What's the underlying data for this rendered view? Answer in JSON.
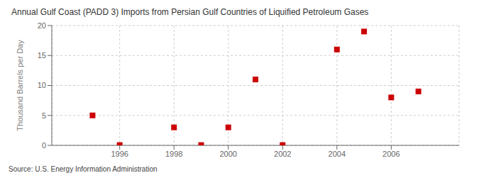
{
  "chart_data": {
    "type": "scatter",
    "title": "Annual Gulf Coast (PADD 3) Imports from Persian Gulf Countries of Liquified Petroleum Gases",
    "y_label": "Thousand Barrels per Day",
    "annotations": [
      "Source: U.S. Energy Information Administration"
    ],
    "x": [
      1995,
      1996,
      1998,
      1999,
      2000,
      2001,
      2002,
      2004,
      2005,
      2006,
      2007
    ],
    "values": [
      5.0,
      0.05,
      3.0,
      0.05,
      3.0,
      11.0,
      0.05,
      16.0,
      19.0,
      8.0,
      9.0
    ],
    "color": "#cc0000",
    "marker": "square",
    "xlim": [
      1993.5,
      2008.5
    ],
    "xticks": [
      1996,
      1998,
      2000,
      2002,
      2004,
      2006
    ],
    "ylim": [
      0,
      20
    ],
    "yticks": [
      0,
      5,
      10,
      15,
      20
    ],
    "grid": true
  }
}
